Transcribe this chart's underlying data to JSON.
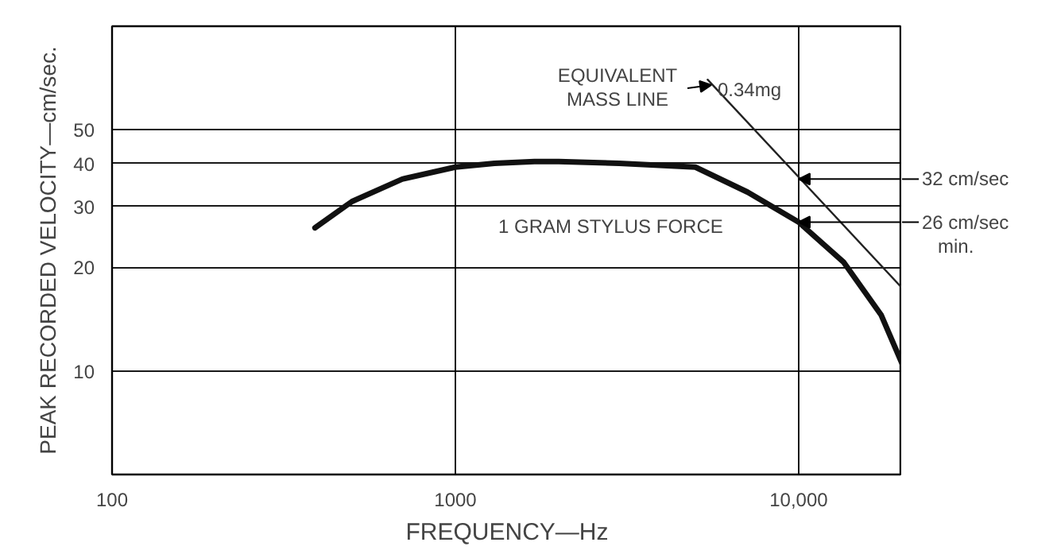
{
  "chart_data": {
    "type": "line",
    "xlabel": "FREQUENCY—Hz",
    "ylabel": "PEAK RECORDED VELOCITY—cm/sec.",
    "log": "xy",
    "xlim": [
      100,
      20000
    ],
    "ylim": [
      5,
      100
    ],
    "xticks": [
      100,
      1000,
      {
        "value": 10000,
        "label": "10,000"
      }
    ],
    "yticks": [
      10,
      20,
      30,
      40,
      50
    ],
    "grid": true,
    "series": [
      {
        "color": "#111111",
        "x": [
          390,
          500,
          700,
          1000,
          1300,
          1700,
          2000,
          3000,
          5000,
          7100,
          10000,
          13500,
          17400,
          20000
        ],
        "values": [
          26,
          31,
          36,
          39,
          40,
          40.5,
          40.5,
          40,
          39,
          33,
          27,
          20.7,
          14.5,
          10.5
        ]
      },
      {
        "color": "#222222",
        "x": [
          5430,
          20000
        ],
        "values": [
          70,
          17.4
        ]
      }
    ],
    "annotations": [
      "EQUIVALENT\nMASS LINE",
      "0.34mg",
      "1 GRAM STYLUS FORCE",
      {
        "text": "32 cm/sec",
        "x": 10000,
        "y": 36
      },
      {
        "text": "26 cm/sec\nmin.",
        "x": 10000,
        "y": 27
      }
    ]
  }
}
